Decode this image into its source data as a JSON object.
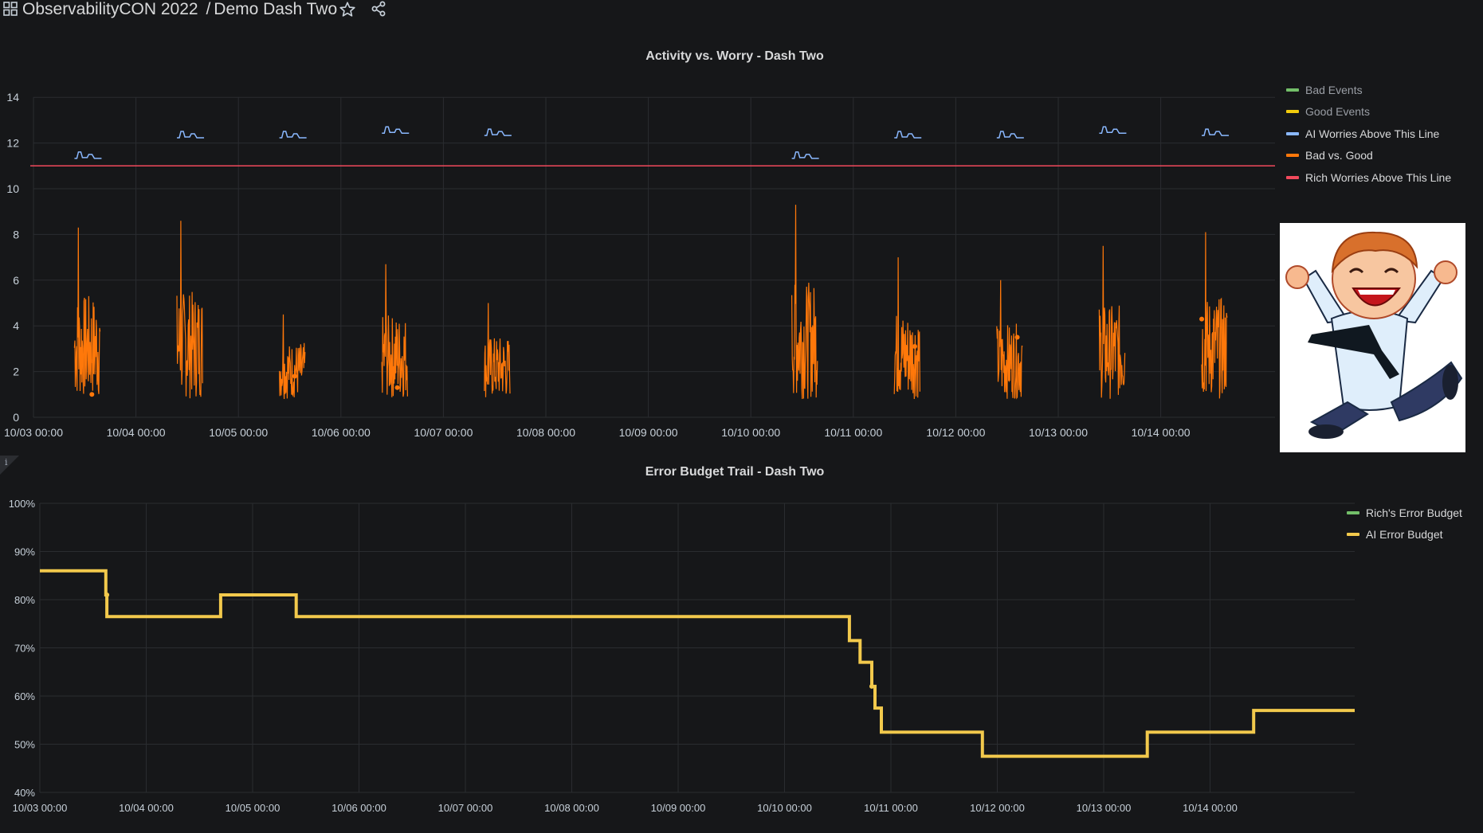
{
  "header": {
    "folder": "ObservabilityCON 2022",
    "separator": "/",
    "dashboard": "Demo Dash Two",
    "icons": [
      "grid-icon",
      "star-icon",
      "share-icon"
    ]
  },
  "panel1": {
    "title": "Activity vs. Worry - Dash Two",
    "legend": [
      {
        "label": "Bad Events",
        "color": "#73bf69"
      },
      {
        "label": "Good Events",
        "color": "#f2cc0c"
      },
      {
        "label": "AI Worries Above This Line",
        "color": "#8ab8ff"
      },
      {
        "label": "Bad vs. Good",
        "color": "#ff780a"
      },
      {
        "label": "Rich Worries Above This Line",
        "color": "#f2495c"
      }
    ]
  },
  "panel2": {
    "title": "Error Budget Trail - Dash Two",
    "info_icon": "i",
    "legend": [
      {
        "label": "Rich's Error Budget",
        "color": "#73bf69"
      },
      {
        "label": "AI Error Budget",
        "color": "#f2c94c"
      }
    ]
  },
  "chart_data": [
    {
      "type": "line",
      "title": "Activity vs. Worry - Dash Two",
      "ylim": [
        0,
        14
      ],
      "yticks": [
        "0",
        "2",
        "4",
        "6",
        "8",
        "10",
        "12",
        "14"
      ],
      "xticks": [
        "10/03 00:00",
        "10/04 00:00",
        "10/05 00:00",
        "10/06 00:00",
        "10/07 00:00",
        "10/08 00:00",
        "10/09 00:00",
        "10/10 00:00",
        "10/11 00:00",
        "10/12 00:00",
        "10/13 00:00",
        "10/14 00:00"
      ],
      "xlim_days": [
        0,
        12.5
      ],
      "grid": true,
      "legend_position": "right",
      "series": [
        {
          "name": "Rich Worries Above This Line",
          "color": "#f2495c",
          "constant": 11
        },
        {
          "name": "AI Worries Above This Line",
          "color": "#8ab8ff",
          "segments": [
            [
              0.4,
              11.4
            ],
            [
              1.4,
              12.3
            ],
            [
              2.4,
              12.3
            ],
            [
              3.4,
              12.5
            ],
            [
              4.4,
              12.4
            ],
            [
              7.4,
              11.4
            ],
            [
              8.4,
              12.3
            ],
            [
              9.4,
              12.3
            ],
            [
              10.4,
              12.5
            ],
            [
              11.4,
              12.4
            ]
          ]
        },
        {
          "name": "Bad vs. Good",
          "color": "#ff780a",
          "bursts": [
            {
              "start": 0.4,
              "end": 0.65,
              "peak": 8.3
            },
            {
              "start": 1.4,
              "end": 1.65,
              "peak": 8.6
            },
            {
              "start": 2.4,
              "end": 2.65,
              "peak": 4.5
            },
            {
              "start": 3.4,
              "end": 3.65,
              "peak": 6.7
            },
            {
              "start": 4.4,
              "end": 4.65,
              "peak": 5.0
            },
            {
              "start": 7.4,
              "end": 7.65,
              "peak": 9.3
            },
            {
              "start": 8.4,
              "end": 8.65,
              "peak": 7.0
            },
            {
              "start": 9.4,
              "end": 9.65,
              "peak": 6.0
            },
            {
              "start": 10.4,
              "end": 10.65,
              "peak": 7.5
            },
            {
              "start": 11.4,
              "end": 11.65,
              "peak": 8.1
            }
          ],
          "points": [
            [
              0.55,
              2.5
            ],
            [
              0.57,
              1.0
            ],
            [
              2.55,
              1.8
            ],
            [
              3.55,
              1.3
            ],
            [
              8.6,
              3.1
            ],
            [
              9.6,
              3.5
            ],
            [
              11.4,
              4.3
            ]
          ]
        }
      ]
    },
    {
      "type": "line",
      "title": "Error Budget Trail - Dash Two",
      "ylim": [
        40,
        100
      ],
      "yticks": [
        "40%",
        "50%",
        "60%",
        "70%",
        "80%",
        "90%",
        "100%"
      ],
      "xticks": [
        "10/03 00:00",
        "10/04 00:00",
        "10/05 00:00",
        "10/06 00:00",
        "10/07 00:00",
        "10/08 00:00",
        "10/09 00:00",
        "10/10 00:00",
        "10/11 00:00",
        "10/12 00:00",
        "10/13 00:00",
        "10/14 00:00"
      ],
      "xlim_days": [
        0,
        12
      ],
      "grid": true,
      "legend_position": "right",
      "series": [
        {
          "name": "AI Error Budget",
          "color": "#f2c94c",
          "steps": [
            [
              0,
              86
            ],
            [
              0.62,
              81
            ],
            [
              0.63,
              76.5
            ],
            [
              1.69,
              76.5
            ],
            [
              1.7,
              81
            ],
            [
              2.4,
              81
            ],
            [
              2.41,
              76.5
            ],
            [
              7.6,
              76.5
            ],
            [
              7.61,
              71.5
            ],
            [
              7.7,
              71.5
            ],
            [
              7.71,
              67
            ],
            [
              7.81,
              67
            ],
            [
              7.82,
              62
            ],
            [
              7.84,
              62
            ],
            [
              7.85,
              57.5
            ],
            [
              7.9,
              57.5
            ],
            [
              7.91,
              52.5
            ],
            [
              8.85,
              52.5
            ],
            [
              8.86,
              47.5
            ],
            [
              10.4,
              47.5
            ],
            [
              10.41,
              52.5
            ],
            [
              11.4,
              52.5
            ],
            [
              11.41,
              57
            ],
            [
              12.0,
              57
            ]
          ]
        }
      ]
    }
  ]
}
